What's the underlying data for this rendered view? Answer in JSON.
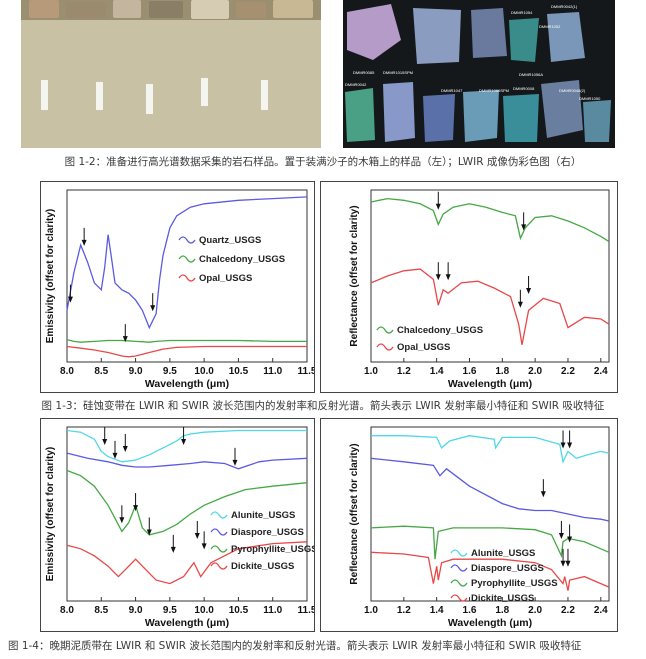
{
  "figure_1_2": {
    "caption": "图 1-2：准备进行高光谱数据采集的岩石样品。置于装满沙子的木箱上的样品（左）；LWIR 成像伪彩色图（右）",
    "sample_labels": [
      "DMMR0042(1)",
      "DMMR1054",
      "DMMR1052",
      "DMMR0085",
      "DMMR1015SPM",
      "DMMR1056A",
      "DMMR0042",
      "DMMR1047",
      "DMMR1066SPM",
      "DMMR0008",
      "DMMR0048(2)",
      "DMMR1050"
    ]
  },
  "figure_1_3": {
    "caption": "图 1-3：硅蚀变带在 LWIR 和 SWIR 波长范围内的发射率和反射光谱。箭头表示 LWIR 发射率最小特征和 SWIR 吸收特征"
  },
  "figure_1_4": {
    "caption": "图 1-4：晚期泥质带在 LWIR 和 SWIR 波长范围内的发射率和反射光谱。箭头表示 LWIR 发射率最小特征和 SWIR 吸收特征"
  },
  "chart_data": [
    {
      "id": "fig13_lwir",
      "type": "line",
      "xlabel": "Wavelength (μm)",
      "ylabel": "Emissivity (offset for clarity)",
      "xlim": [
        8.0,
        11.5
      ],
      "xticks": [
        "8.0",
        "8.5",
        "9.0",
        "9.5",
        "10.0",
        "10.5",
        "11.0",
        "11.5"
      ],
      "legend_position": "top-right",
      "series": [
        {
          "name": "Quartz_USGS",
          "color": "#5b5be0",
          "x": [
            8.0,
            8.1,
            8.2,
            8.3,
            8.4,
            8.5,
            8.55,
            8.6,
            8.65,
            8.7,
            8.8,
            8.9,
            9.0,
            9.1,
            9.2,
            9.3,
            9.35,
            9.4,
            9.5,
            9.6,
            9.8,
            10.0,
            10.5,
            11.0,
            11.5
          ],
          "y": [
            0.3,
            0.52,
            0.68,
            0.58,
            0.46,
            0.42,
            0.55,
            0.74,
            0.6,
            0.46,
            0.42,
            0.4,
            0.36,
            0.3,
            0.2,
            0.28,
            0.48,
            0.62,
            0.78,
            0.85,
            0.9,
            0.92,
            0.94,
            0.95,
            0.96
          ]
        },
        {
          "name": "Chalcedony_USGS",
          "color": "#45a845",
          "x": [
            8.0,
            8.1,
            8.2,
            8.4,
            8.6,
            8.8,
            9.0,
            9.2,
            9.3,
            9.5,
            10.0,
            10.5,
            11.0,
            11.5
          ],
          "y": [
            0.13,
            0.12,
            0.115,
            0.12,
            0.125,
            0.125,
            0.12,
            0.115,
            0.12,
            0.125,
            0.125,
            0.125,
            0.12,
            0.12
          ]
        },
        {
          "name": "Opal_USGS",
          "color": "#e84848",
          "x": [
            8.0,
            8.2,
            8.4,
            8.6,
            8.8,
            8.9,
            9.0,
            9.2,
            9.4,
            9.6,
            10.0,
            10.5,
            11.0,
            11.5
          ],
          "y": [
            0.09,
            0.08,
            0.07,
            0.055,
            0.035,
            0.03,
            0.035,
            0.055,
            0.075,
            0.085,
            0.09,
            0.09,
            0.09,
            0.09
          ]
        }
      ]
    },
    {
      "id": "fig13_swir",
      "type": "line",
      "xlabel": "Wavelength (μm)",
      "ylabel": "Reflectance (offset for clarity)",
      "xlim": [
        1.0,
        2.45
      ],
      "xticks": [
        "1.0",
        "1.2",
        "1.4",
        "1.6",
        "1.8",
        "2.0",
        "2.2",
        "2.4"
      ],
      "legend_position": "bottom-left",
      "series": [
        {
          "name": "Chalcedony_USGS",
          "color": "#45a845",
          "x": [
            1.0,
            1.1,
            1.2,
            1.3,
            1.38,
            1.41,
            1.44,
            1.5,
            1.6,
            1.7,
            1.8,
            1.88,
            1.91,
            1.94,
            2.0,
            2.1,
            2.2,
            2.3,
            2.4,
            2.45
          ],
          "y": [
            0.93,
            0.95,
            0.94,
            0.92,
            0.88,
            0.8,
            0.86,
            0.9,
            0.92,
            0.9,
            0.87,
            0.85,
            0.72,
            0.78,
            0.84,
            0.85,
            0.82,
            0.78,
            0.73,
            0.7
          ]
        },
        {
          "name": "Opal_USGS",
          "color": "#e84848",
          "x": [
            1.0,
            1.1,
            1.2,
            1.3,
            1.38,
            1.41,
            1.44,
            1.47,
            1.55,
            1.65,
            1.75,
            1.85,
            1.9,
            1.92,
            1.96,
            2.05,
            2.15,
            2.2,
            2.3,
            2.4,
            2.45
          ],
          "y": [
            0.46,
            0.5,
            0.53,
            0.54,
            0.48,
            0.33,
            0.42,
            0.4,
            0.46,
            0.47,
            0.43,
            0.38,
            0.22,
            0.1,
            0.3,
            0.37,
            0.34,
            0.2,
            0.26,
            0.25,
            0.22
          ]
        }
      ]
    },
    {
      "id": "fig14_lwir",
      "type": "line",
      "xlabel": "Wavelength (μm)",
      "ylabel": "Emissivity (offset for clarity)",
      "xlim": [
        8.0,
        11.5
      ],
      "xticks": [
        "8.0",
        "8.5",
        "9.0",
        "9.5",
        "10.0",
        "10.5",
        "11.0",
        "11.5"
      ],
      "legend_position": "bottom-right",
      "series": [
        {
          "name": "Alunite_USGS",
          "color": "#4fd8e8",
          "x": [
            8.0,
            8.2,
            8.4,
            8.5,
            8.6,
            8.8,
            9.0,
            9.2,
            9.4,
            9.6,
            9.7,
            9.8,
            10.0,
            10.5,
            11.0,
            11.5
          ],
          "y": [
            0.98,
            0.97,
            0.93,
            0.86,
            0.83,
            0.8,
            0.81,
            0.84,
            0.88,
            0.92,
            0.95,
            0.96,
            0.97,
            0.98,
            0.98,
            0.98
          ]
        },
        {
          "name": "Diaspore_USGS",
          "color": "#5b5be0",
          "x": [
            8.0,
            8.3,
            8.6,
            8.8,
            9.0,
            9.2,
            9.5,
            9.8,
            10.0,
            10.3,
            10.5,
            10.8,
            11.0,
            11.5
          ],
          "y": [
            0.85,
            0.82,
            0.8,
            0.78,
            0.77,
            0.77,
            0.78,
            0.79,
            0.8,
            0.79,
            0.76,
            0.8,
            0.81,
            0.82
          ]
        },
        {
          "name": "Pyrophyllite_USGS",
          "color": "#45a845",
          "x": [
            8.0,
            8.2,
            8.4,
            8.6,
            8.8,
            8.9,
            9.0,
            9.1,
            9.2,
            9.4,
            9.6,
            9.8,
            10.0,
            10.3,
            10.6,
            11.0,
            11.5
          ],
          "y": [
            0.75,
            0.72,
            0.66,
            0.55,
            0.4,
            0.45,
            0.55,
            0.42,
            0.38,
            0.4,
            0.44,
            0.5,
            0.55,
            0.6,
            0.64,
            0.66,
            0.68
          ]
        },
        {
          "name": "Dickite_USGS",
          "color": "#e84848",
          "x": [
            8.0,
            8.2,
            8.4,
            8.6,
            8.75,
            8.85,
            9.0,
            9.1,
            9.3,
            9.5,
            9.7,
            9.85,
            9.95,
            10.1,
            10.5,
            11.0,
            11.5
          ],
          "y": [
            0.32,
            0.3,
            0.26,
            0.2,
            0.14,
            0.18,
            0.24,
            0.2,
            0.12,
            0.1,
            0.14,
            0.22,
            0.14,
            0.22,
            0.3,
            0.33,
            0.34
          ]
        }
      ]
    },
    {
      "id": "fig14_swir",
      "type": "line",
      "xlabel": "Wavelength (μm)",
      "ylabel": "Reflectance (offset for clarity)",
      "xlim": [
        1.0,
        2.45
      ],
      "xticks": [
        "1.0",
        "1.2",
        "1.4",
        "1.6",
        "1.8",
        "2.0",
        "2.2",
        "2.4"
      ],
      "legend_position": "bottom-left",
      "series": [
        {
          "name": "Alunite_USGS",
          "color": "#4fd8e8",
          "x": [
            1.0,
            1.2,
            1.4,
            1.43,
            1.48,
            1.6,
            1.75,
            1.76,
            1.8,
            2.0,
            2.15,
            2.17,
            2.2,
            2.25,
            2.32,
            2.4,
            2.45
          ],
          "y": [
            0.95,
            0.95,
            0.94,
            0.88,
            0.92,
            0.95,
            0.93,
            0.88,
            0.94,
            0.94,
            0.9,
            0.8,
            0.86,
            0.82,
            0.84,
            0.86,
            0.85
          ]
        },
        {
          "name": "Diaspore_USGS",
          "color": "#5b5be0",
          "x": [
            1.0,
            1.2,
            1.38,
            1.42,
            1.46,
            1.6,
            1.8,
            1.9,
            2.0,
            2.1,
            2.2,
            2.3,
            2.4,
            2.45
          ],
          "y": [
            0.82,
            0.8,
            0.78,
            0.72,
            0.76,
            0.66,
            0.56,
            0.53,
            0.52,
            0.52,
            0.5,
            0.48,
            0.47,
            0.46
          ]
        },
        {
          "name": "Pyrophyllite_USGS",
          "color": "#45a845",
          "x": [
            1.0,
            1.2,
            1.38,
            1.39,
            1.41,
            1.5,
            1.8,
            2.0,
            2.1,
            2.16,
            2.17,
            2.2,
            2.3,
            2.4,
            2.45
          ],
          "y": [
            0.42,
            0.43,
            0.42,
            0.24,
            0.4,
            0.42,
            0.42,
            0.41,
            0.38,
            0.26,
            0.34,
            0.36,
            0.34,
            0.3,
            0.28
          ]
        },
        {
          "name": "Dickite_USGS",
          "color": "#e84848",
          "x": [
            1.0,
            1.2,
            1.35,
            1.38,
            1.4,
            1.41,
            1.43,
            1.5,
            1.8,
            2.0,
            2.1,
            2.17,
            2.18,
            2.2,
            2.21,
            2.3,
            2.4,
            2.45
          ],
          "y": [
            0.28,
            0.27,
            0.25,
            0.1,
            0.2,
            0.12,
            0.22,
            0.24,
            0.24,
            0.22,
            0.18,
            0.1,
            0.14,
            0.06,
            0.12,
            0.14,
            0.1,
            0.08
          ]
        }
      ]
    }
  ]
}
